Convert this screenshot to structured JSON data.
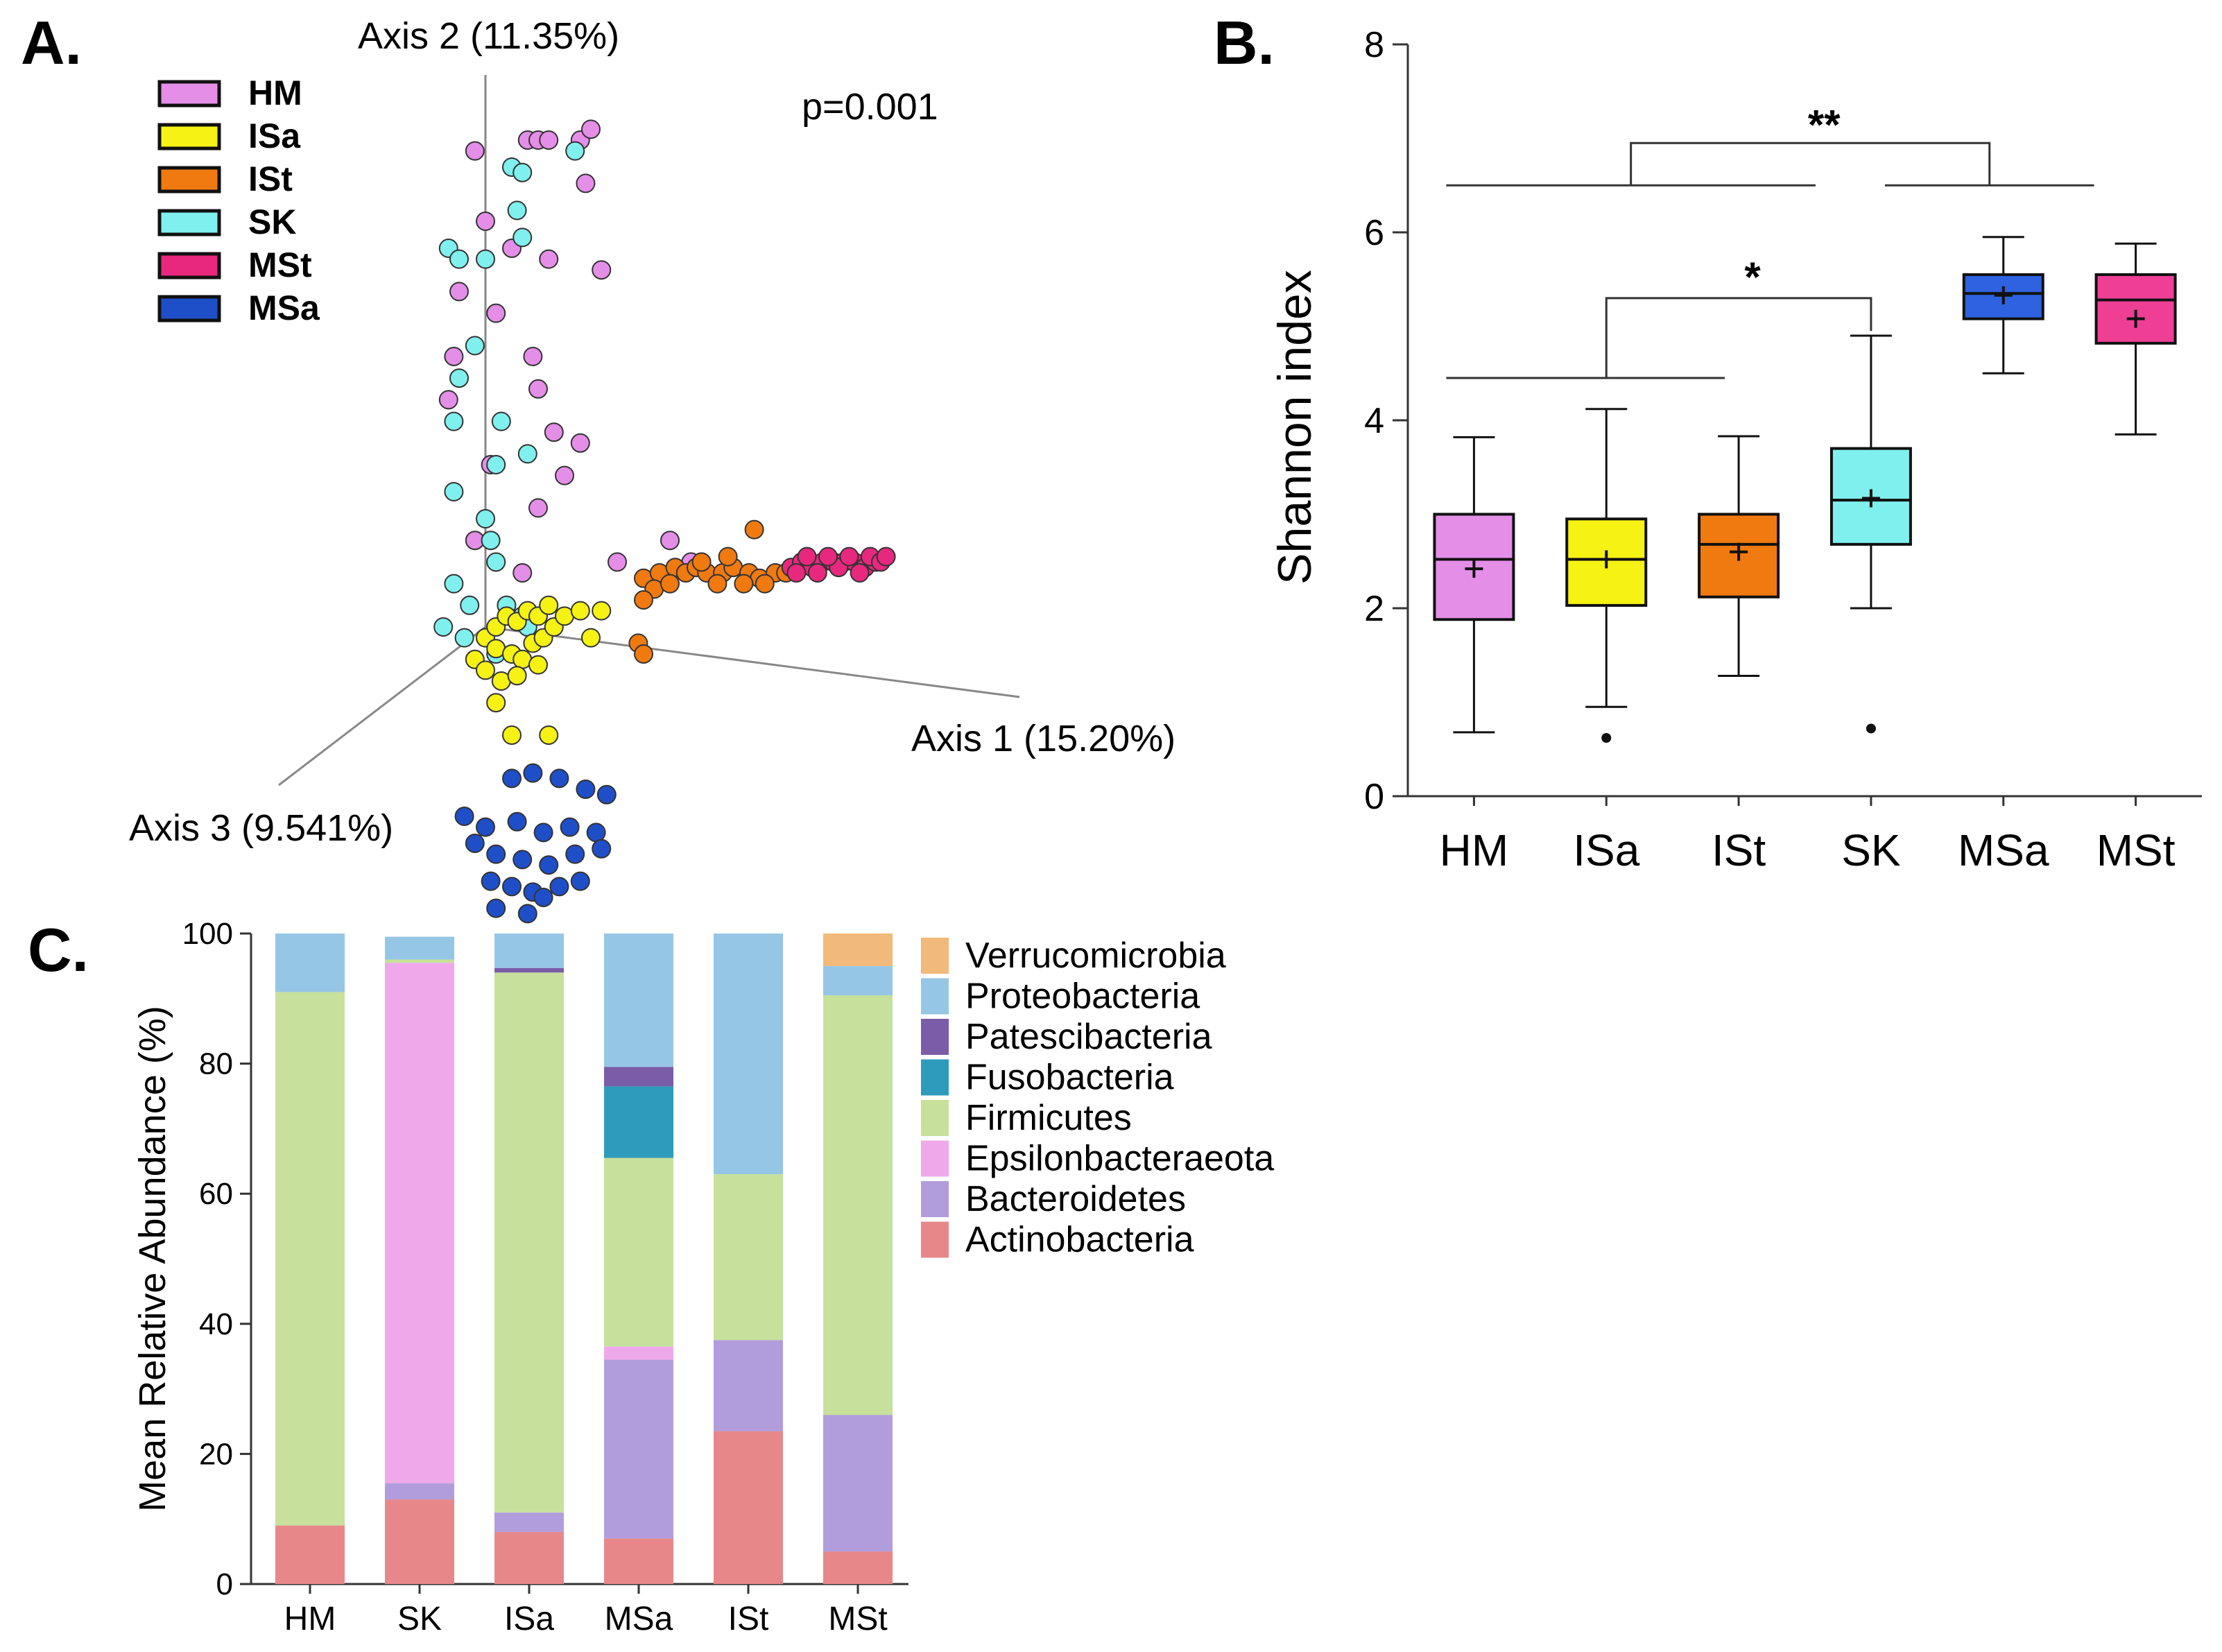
{
  "chart_data": [
    {
      "panel": "A.",
      "type": "scatter",
      "subtype": "3d-pcoa",
      "axes": {
        "x": "Axis 1 (15.20%)",
        "y": "Axis 2 (11.35%)",
        "z": "Axis 3 (9.541%)"
      },
      "annotation": "p=0.001",
      "legend": [
        {
          "name": "HM",
          "color": "#e48ee8"
        },
        {
          "name": "ISa",
          "color": "#f5f214"
        },
        {
          "name": "ISt",
          "color": "#f07a0f"
        },
        {
          "name": "SK",
          "color": "#7ff0ee"
        },
        {
          "name": "MSt",
          "color": "#e8287e"
        },
        {
          "name": "MSa",
          "color": "#1f4fc8"
        }
      ],
      "series": [
        {
          "name": "HM",
          "color": "#e48ee8",
          "points": [
            [
              -0.02,
              0.88
            ],
            [
              0.08,
              0.9
            ],
            [
              0.1,
              0.9
            ],
            [
              0.12,
              0.9
            ],
            [
              0.18,
              0.9
            ],
            [
              0.2,
              0.92
            ],
            [
              0.19,
              0.82
            ],
            [
              0.0,
              0.75
            ],
            [
              0.05,
              0.7
            ],
            [
              0.12,
              0.68
            ],
            [
              0.22,
              0.66
            ],
            [
              -0.05,
              0.62
            ],
            [
              0.02,
              0.58
            ],
            [
              -0.06,
              0.5
            ],
            [
              0.09,
              0.5
            ],
            [
              -0.07,
              0.42
            ],
            [
              0.1,
              0.44
            ],
            [
              0.13,
              0.36
            ],
            [
              0.18,
              0.34
            ],
            [
              0.01,
              0.3
            ],
            [
              0.15,
              0.28
            ],
            [
              0.1,
              0.22
            ],
            [
              -0.02,
              0.16
            ],
            [
              0.07,
              0.1
            ],
            [
              0.25,
              0.12
            ],
            [
              0.35,
              0.16
            ],
            [
              0.39,
              0.12
            ]
          ]
        },
        {
          "name": "SK",
          "color": "#7ff0ee",
          "points": [
            [
              0.05,
              0.85
            ],
            [
              0.07,
              0.84
            ],
            [
              0.17,
              0.88
            ],
            [
              0.06,
              0.77
            ],
            [
              0.07,
              0.72
            ],
            [
              -0.07,
              0.7
            ],
            [
              -0.05,
              0.68
            ],
            [
              0.0,
              0.68
            ],
            [
              -0.02,
              0.52
            ],
            [
              -0.05,
              0.46
            ],
            [
              -0.06,
              0.38
            ],
            [
              0.03,
              0.38
            ],
            [
              0.02,
              0.3
            ],
            [
              0.08,
              0.32
            ],
            [
              -0.06,
              0.25
            ],
            [
              0.0,
              0.2
            ],
            [
              0.01,
              0.16
            ],
            [
              0.02,
              0.12
            ],
            [
              -0.06,
              0.08
            ],
            [
              -0.03,
              0.04
            ],
            [
              0.04,
              0.04
            ],
            [
              0.07,
              0.02
            ],
            [
              -0.08,
              0.0
            ],
            [
              -0.04,
              -0.02
            ],
            [
              0.08,
              0.0
            ],
            [
              0.02,
              -0.05
            ]
          ]
        },
        {
          "name": "ISa",
          "color": "#f5f214",
          "points": [
            [
              0.0,
              -0.02
            ],
            [
              0.02,
              0.0
            ],
            [
              0.04,
              0.02
            ],
            [
              0.06,
              0.01
            ],
            [
              0.08,
              0.03
            ],
            [
              0.1,
              0.02
            ],
            [
              0.12,
              0.04
            ],
            [
              0.02,
              -0.04
            ],
            [
              0.05,
              -0.05
            ],
            [
              0.07,
              -0.06
            ],
            [
              0.09,
              -0.03
            ],
            [
              0.11,
              -0.02
            ],
            [
              -0.02,
              -0.06
            ],
            [
              0.0,
              -0.08
            ],
            [
              0.03,
              -0.1
            ],
            [
              0.06,
              -0.09
            ],
            [
              0.1,
              -0.07
            ],
            [
              0.13,
              0.0
            ],
            [
              0.15,
              0.02
            ],
            [
              0.18,
              0.03
            ],
            [
              0.2,
              -0.02
            ],
            [
              0.22,
              0.03
            ],
            [
              0.02,
              -0.14
            ],
            [
              0.05,
              -0.2
            ],
            [
              0.12,
              -0.2
            ]
          ]
        },
        {
          "name": "ISt",
          "color": "#f07a0f",
          "points": [
            [
              0.3,
              0.09
            ],
            [
              0.33,
              0.1
            ],
            [
              0.36,
              0.11
            ],
            [
              0.38,
              0.1
            ],
            [
              0.4,
              0.11
            ],
            [
              0.42,
              0.1
            ],
            [
              0.45,
              0.1
            ],
            [
              0.47,
              0.11
            ],
            [
              0.5,
              0.1
            ],
            [
              0.52,
              0.09
            ],
            [
              0.55,
              0.1
            ],
            [
              0.57,
              0.1
            ],
            [
              0.32,
              0.07
            ],
            [
              0.35,
              0.08
            ],
            [
              0.44,
              0.08
            ],
            [
              0.49,
              0.08
            ],
            [
              0.53,
              0.08
            ],
            [
              0.41,
              0.12
            ],
            [
              0.46,
              0.13
            ],
            [
              0.51,
              0.18
            ],
            [
              0.29,
              -0.03
            ],
            [
              0.3,
              -0.05
            ],
            [
              0.3,
              0.05
            ]
          ]
        },
        {
          "name": "MSt",
          "color": "#e8287e",
          "points": [
            [
              0.58,
              0.11
            ],
            [
              0.6,
              0.12
            ],
            [
              0.62,
              0.11
            ],
            [
              0.64,
              0.12
            ],
            [
              0.66,
              0.12
            ],
            [
              0.68,
              0.12
            ],
            [
              0.7,
              0.12
            ],
            [
              0.72,
              0.11
            ],
            [
              0.74,
              0.12
            ],
            [
              0.59,
              0.1
            ],
            [
              0.63,
              0.1
            ],
            [
              0.67,
              0.11
            ],
            [
              0.71,
              0.1
            ],
            [
              0.73,
              0.13
            ],
            [
              0.61,
              0.13
            ],
            [
              0.65,
              0.13
            ],
            [
              0.69,
              0.13
            ],
            [
              0.75,
              0.12
            ],
            [
              0.76,
              0.13
            ]
          ]
        },
        {
          "name": "MSa",
          "color": "#1f4fc8",
          "points": [
            [
              0.05,
              -0.28
            ],
            [
              0.09,
              -0.27
            ],
            [
              0.14,
              -0.28
            ],
            [
              0.19,
              -0.3
            ],
            [
              0.23,
              -0.31
            ],
            [
              -0.04,
              -0.35
            ],
            [
              0.0,
              -0.37
            ],
            [
              0.06,
              -0.36
            ],
            [
              0.11,
              -0.38
            ],
            [
              0.16,
              -0.37
            ],
            [
              0.21,
              -0.38
            ],
            [
              -0.02,
              -0.4
            ],
            [
              0.02,
              -0.42
            ],
            [
              0.07,
              -0.43
            ],
            [
              0.12,
              -0.44
            ],
            [
              0.17,
              -0.42
            ],
            [
              0.22,
              -0.41
            ],
            [
              0.01,
              -0.47
            ],
            [
              0.05,
              -0.48
            ],
            [
              0.09,
              -0.49
            ],
            [
              0.14,
              -0.48
            ],
            [
              0.18,
              -0.47
            ],
            [
              0.02,
              -0.52
            ],
            [
              0.08,
              -0.53
            ],
            [
              0.11,
              -0.5
            ]
          ]
        }
      ]
    },
    {
      "panel": "B.",
      "type": "box",
      "ylabel": "Shannon index",
      "ylim": [
        0,
        8
      ],
      "yticks": [
        "0",
        "2",
        "4",
        "6",
        "8"
      ],
      "categories": [
        "HM",
        "ISa",
        "ISt",
        "SK",
        "MSa",
        "MSt"
      ],
      "colors": [
        "#e48ee8",
        "#f5f214",
        "#f07a0f",
        "#7ff0ee",
        "#2f62e0",
        "#ee3f95"
      ],
      "boxes": [
        {
          "min": 0.68,
          "q1": 1.88,
          "median": 2.52,
          "q3": 3.0,
          "max": 3.82,
          "mean": 2.42,
          "outliers": []
        },
        {
          "min": 0.95,
          "q1": 2.03,
          "median": 2.52,
          "q3": 2.95,
          "max": 4.12,
          "mean": 2.52,
          "outliers": [
            0.62
          ]
        },
        {
          "min": 1.28,
          "q1": 2.12,
          "median": 2.68,
          "q3": 3.0,
          "max": 3.83,
          "mean": 2.6,
          "outliers": []
        },
        {
          "min": 2.0,
          "q1": 2.68,
          "median": 3.15,
          "q3": 3.7,
          "max": 4.9,
          "mean": 3.17,
          "outliers": [
            0.72
          ]
        },
        {
          "min": 4.5,
          "q1": 5.08,
          "median": 5.35,
          "q3": 5.55,
          "max": 5.95,
          "mean": 5.33,
          "outliers": []
        },
        {
          "min": 3.85,
          "q1": 4.82,
          "median": 5.28,
          "q3": 5.55,
          "max": 5.88,
          "mean": 5.08,
          "outliers": []
        }
      ],
      "significance": [
        {
          "label": "**",
          "left_groups": [
            "HM",
            "ISa",
            "ISt",
            "SK"
          ],
          "right_groups": [
            "MSa",
            "MSt"
          ],
          "low": 6.5,
          "high": 6.95
        },
        {
          "label": "*",
          "left_groups": [
            "HM",
            "ISa",
            "ISt"
          ],
          "right_groups": [
            "SK"
          ],
          "low": 4.45,
          "high": 5.3
        }
      ]
    },
    {
      "panel": "C.",
      "type": "bar",
      "stacked": true,
      "ylabel": "Mean Relative Abundance (%)",
      "ylim": [
        0,
        100
      ],
      "yticks": [
        "0",
        "20",
        "40",
        "60",
        "80",
        "100"
      ],
      "categories": [
        "HM",
        "SK",
        "ISa",
        "MSa",
        "ISt",
        "MSt"
      ],
      "series": [
        {
          "name": "Actinobacteria",
          "color": "#e8878a",
          "values": [
            9,
            13,
            8,
            7,
            23.5,
            5
          ]
        },
        {
          "name": "Bacteroidetes",
          "color": "#b19ddc",
          "values": [
            0,
            2.5,
            3,
            27.5,
            14,
            21
          ]
        },
        {
          "name": "Epsilonbacteraeota",
          "color": "#efa9ea",
          "values": [
            0,
            80,
            0,
            2,
            0,
            0
          ]
        },
        {
          "name": "Firmicutes",
          "color": "#c7e09b",
          "values": [
            82,
            0.5,
            83,
            29,
            25.5,
            64.5
          ]
        },
        {
          "name": "Fusobacteria",
          "color": "#2e9bbc",
          "values": [
            0,
            0,
            0,
            11,
            0,
            0
          ]
        },
        {
          "name": "Patescibacteria",
          "color": "#7a5ca8",
          "values": [
            0,
            0,
            0.7,
            3,
            0,
            0
          ]
        },
        {
          "name": "Proteobacteria",
          "color": "#96c6e6",
          "values": [
            9,
            3.5,
            5.3,
            20.5,
            37,
            4.5
          ]
        },
        {
          "name": "Verrucomicrobia",
          "color": "#f1b97a",
          "values": [
            0,
            0,
            0,
            0,
            0,
            5
          ]
        }
      ],
      "legend_order": [
        "Verrucomicrobia",
        "Proteobacteria",
        "Patescibacteria",
        "Fusobacteria",
        "Firmicutes",
        "Epsilonbacteraeota",
        "Bacteroidetes",
        "Actinobacteria"
      ]
    }
  ]
}
